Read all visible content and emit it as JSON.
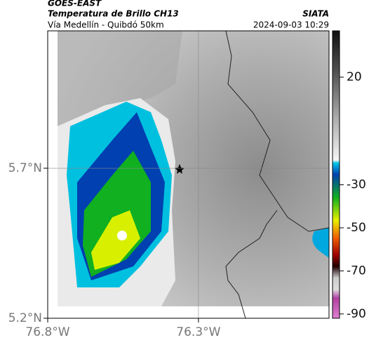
{
  "header": {
    "satellite": "GOES-EAST",
    "product": "Temperatura de Brillo CH13",
    "source": "SIATA",
    "route": "Vía Medellín - Quibdó 50km",
    "datetime": "2024-09-03 10:29"
  },
  "map": {
    "latlim": [
      5.2,
      6.158
    ],
    "lonlim": [
      -76.8,
      -75.867
    ],
    "lat_ticks": [
      {
        "value": 5.7,
        "label": "5.7°N"
      },
      {
        "value": 5.2,
        "label": "5.2°N"
      }
    ],
    "lon_ticks": [
      {
        "value": -76.8,
        "label": "76.8°W"
      },
      {
        "value": -76.3,
        "label": "76.3°W"
      }
    ],
    "grid": true,
    "colorbar": {
      "clim": [
        -92,
        41.5
      ],
      "ticks": [
        20,
        -30,
        -50,
        -70,
        -90
      ]
    }
  }
}
